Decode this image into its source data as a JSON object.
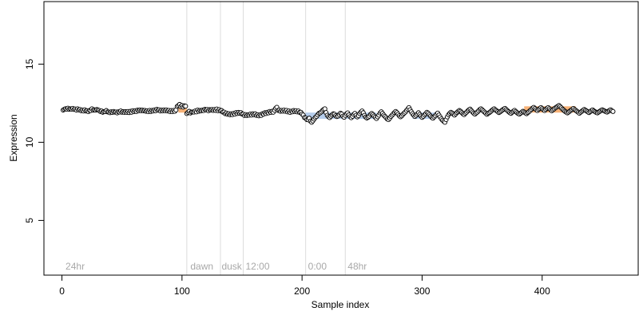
{
  "chart_data": {
    "type": "scatter",
    "title": "",
    "xlabel": "Sample index",
    "ylabel": "Expression",
    "xlim": [
      -15,
      480
    ],
    "ylim": [
      1.5,
      19
    ],
    "x_ticks": [
      0,
      100,
      200,
      300,
      400
    ],
    "y_ticks": [
      5,
      10,
      15
    ],
    "x_tick_labels": [
      "0",
      "100",
      "200",
      "300",
      "400"
    ],
    "y_tick_labels": [
      "5",
      "10",
      "15"
    ],
    "grid": false,
    "section_dividers": [
      104,
      132,
      151,
      203,
      236
    ],
    "section_labels": [
      {
        "x": 3,
        "text": "24hr"
      },
      {
        "x": 107,
        "text": "dawn"
      },
      {
        "x": 133,
        "text": "dusk"
      },
      {
        "x": 153,
        "text": "12:00"
      },
      {
        "x": 205,
        "text": "0:00"
      },
      {
        "x": 238,
        "text": "48hr"
      }
    ],
    "highlight_bands": [
      {
        "x0": 97,
        "x1": 104,
        "y0": 11.9,
        "y1": 12.3,
        "color": "#f4a460"
      },
      {
        "x0": 203,
        "x1": 236,
        "y0": 11.5,
        "y1": 11.9,
        "color": "#a9c4e8"
      },
      {
        "x0": 236,
        "x1": 262,
        "y0": 11.5,
        "y1": 11.9,
        "color": "#a9c4e8"
      },
      {
        "x0": 292,
        "x1": 312,
        "y0": 11.5,
        "y1": 11.9,
        "color": "#a9c4e8"
      },
      {
        "x0": 385,
        "x1": 428,
        "y0": 11.9,
        "y1": 12.3,
        "color": "#f4a460"
      }
    ],
    "series": [
      {
        "point_fill": "#ffffff",
        "point_stroke": "#000000",
        "x_start": 1,
        "x_step": 1,
        "y": [
          12.06,
          12.11,
          12.15,
          12.12,
          12.18,
          12.11,
          12.14,
          12.12,
          12.17,
          12.1,
          12.13,
          12.06,
          12.14,
          12.07,
          12.1,
          12.02,
          12.06,
          12.0,
          12.08,
          12.0,
          12.02,
          11.96,
          12.04,
          12.03,
          12.14,
          12.05,
          12.08,
          12.05,
          12.1,
          12.07,
          12.04,
          11.97,
          12.0,
          11.92,
          11.96,
          11.96,
          12.03,
          11.94,
          11.93,
          11.89,
          11.95,
          11.91,
          11.97,
          11.93,
          11.94,
          11.88,
          11.95,
          11.93,
          12.0,
          11.92,
          11.96,
          11.91,
          11.96,
          11.91,
          11.97,
          11.9,
          11.98,
          11.92,
          12.02,
          11.96,
          12.02,
          11.97,
          12.06,
          12.02,
          12.07,
          12.02,
          12.06,
          12.01,
          12.04,
          11.98,
          12.02,
          11.96,
          12.04,
          11.97,
          12.04,
          12.0,
          12.07,
          12.02,
          12.11,
          12.05,
          12.08,
          12.0,
          12.06,
          12.01,
          12.07,
          12.02,
          12.07,
          12.0,
          12.04,
          11.96,
          12.03,
          11.96,
          12.04,
          11.98,
          12.07,
          12.29,
          12.35,
          12.42,
          12.28,
          12.35,
          12.25,
          12.33,
          12.31,
          11.84,
          11.91,
          11.98,
          11.87,
          11.93,
          11.94,
          11.93,
          12.0,
          11.94,
          12.06,
          11.98,
          12.04,
          12.01,
          12.06,
          12.03,
          12.11,
          12.07,
          12.1,
          12.02,
          12.09,
          12.06,
          12.1,
          12.04,
          12.1,
          12.04,
          12.13,
          12.02,
          12.09,
          12.01,
          12.03,
          11.93,
          11.93,
          11.83,
          11.87,
          11.79,
          11.83,
          11.76,
          11.82,
          11.77,
          11.85,
          11.8,
          11.9,
          11.84,
          11.91,
          11.85,
          11.9,
          11.81,
          11.8,
          11.71,
          11.77,
          11.71,
          11.76,
          11.73,
          11.81,
          11.74,
          11.82,
          11.76,
          11.82,
          11.72,
          11.76,
          11.69,
          11.76,
          11.72,
          11.83,
          11.8,
          11.89,
          11.84,
          11.92,
          11.88,
          11.97,
          11.91,
          11.98,
          11.92,
          12.05,
          12.17,
          12.24,
          12.04,
          12.06,
          11.98,
          12.04,
          11.99,
          12.06,
          11.98,
          12.04,
          11.94,
          12.0,
          11.91,
          11.99,
          11.95,
          12.03,
          11.97,
          12.02,
          11.94,
          12.0,
          11.91,
          11.92,
          11.81,
          11.74,
          11.58,
          11.55,
          11.45,
          11.44,
          11.54,
          11.35,
          11.28,
          11.37,
          11.48,
          11.58,
          11.65,
          11.75,
          11.85,
          11.88,
          11.94,
          12.03,
          12.1,
          12.14,
          11.9,
          11.73,
          11.64,
          11.58,
          11.67,
          11.75,
          11.82,
          11.8,
          11.7,
          11.64,
          11.68,
          11.77,
          11.86,
          11.81,
          11.67,
          11.6,
          11.72,
          11.82,
          11.88,
          11.75,
          11.64,
          11.57,
          11.66,
          11.78,
          11.85,
          11.73,
          11.62,
          11.7,
          11.84,
          11.93,
          12.0,
          11.89,
          11.72,
          11.61,
          11.55,
          11.6,
          11.67,
          11.78,
          11.84,
          11.77,
          11.68,
          11.6,
          11.52,
          11.63,
          11.74,
          11.87,
          11.95,
          11.85,
          11.74,
          11.66,
          11.58,
          11.49,
          11.45,
          11.54,
          11.65,
          11.73,
          11.82,
          11.9,
          11.97,
          11.9,
          11.8,
          11.7,
          11.63,
          11.69,
          11.78,
          11.86,
          11.93,
          12.03,
          12.12,
          12.22,
          12.08,
          11.95,
          11.83,
          11.73,
          11.65,
          11.72,
          11.81,
          11.89,
          11.78,
          11.68,
          11.59,
          11.66,
          11.75,
          11.83,
          11.92,
          11.86,
          11.77,
          11.68,
          11.6,
          11.54,
          11.62,
          11.7,
          11.79,
          11.87,
          11.74,
          11.62,
          11.5,
          11.41,
          11.34,
          11.28,
          11.45,
          11.62,
          11.76,
          11.85,
          11.92,
          11.87,
          11.8,
          11.74,
          11.82,
          11.9,
          11.97,
          12.03,
          11.98,
          11.9,
          11.83,
          11.77,
          11.85,
          11.92,
          12.0,
          12.07,
          12.12,
          12.03,
          11.94,
          11.86,
          11.8,
          11.87,
          11.93,
          12.01,
          12.09,
          12.14,
          12.08,
          12.0,
          11.93,
          11.86,
          11.79,
          11.85,
          11.9,
          11.96,
          12.03,
          12.09,
          12.14,
          12.08,
          12.02,
          11.96,
          11.9,
          11.95,
          12.01,
          12.07,
          12.12,
          12.17,
          12.1,
          12.03,
          11.96,
          11.9,
          11.85,
          11.92,
          11.98,
          12.04,
          11.97,
          11.9,
          11.84,
          11.8,
          11.86,
          11.92,
          11.98,
          11.93,
          11.88,
          11.83,
          11.9,
          11.96,
          12.03,
          12.1,
          12.18,
          12.23,
          12.16,
          12.09,
          12.03,
          12.1,
          12.16,
          12.22,
          12.15,
          12.08,
          12.03,
          12.1,
          12.17,
          12.22,
          12.15,
          12.08,
          12.02,
          12.08,
          12.14,
          12.2,
          12.25,
          12.3,
          12.35,
          12.28,
          12.2,
          12.12,
          12.05,
          11.98,
          11.93,
          11.88,
          11.93,
          11.99,
          12.05,
          12.1,
          12.16,
          12.1,
          12.04,
          11.98,
          11.92,
          11.86,
          11.92,
          11.98,
          12.04,
          12.1,
          12.05,
          12.0,
          11.95,
          11.9,
          11.96,
          12.02,
          12.07,
          12.01,
          11.96,
          11.91,
          11.88,
          11.93,
          11.98,
          12.03,
          12.08,
          12.04,
          12.0,
          11.96,
          11.93,
          11.98,
          12.03,
          12.08,
          12.02,
          11.97
        ]
      }
    ]
  }
}
